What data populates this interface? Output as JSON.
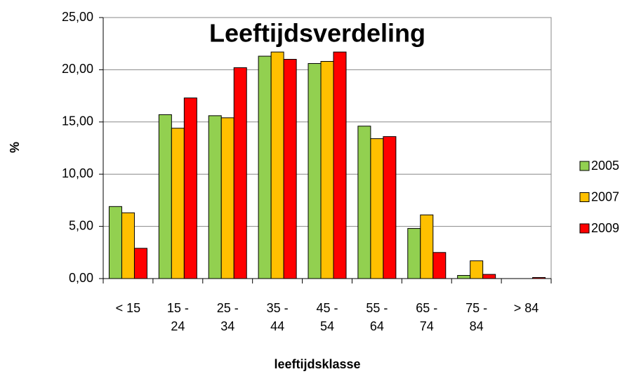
{
  "chart_data": {
    "type": "bar",
    "title": "Leeftijdsverdeling",
    "x_label": "leeftijdsklasse",
    "y_label": "%",
    "categories": [
      "< 15",
      "15 - 24",
      "25 - 34",
      "35 - 44",
      "45 - 54",
      "55 - 64",
      "65 - 74",
      "75 - 84",
      "> 84"
    ],
    "series": [
      {
        "name": "2005",
        "color": "#92d050",
        "values": [
          6.9,
          15.7,
          15.6,
          21.3,
          20.6,
          14.6,
          4.8,
          0.3,
          0.0
        ]
      },
      {
        "name": "2007",
        "color": "#ffc000",
        "values": [
          6.3,
          14.4,
          15.4,
          21.7,
          20.8,
          13.4,
          6.1,
          1.7,
          0.0
        ]
      },
      {
        "name": "2009",
        "color": "#ff0000",
        "values": [
          2.9,
          17.3,
          20.2,
          21.0,
          21.7,
          13.6,
          2.5,
          0.4,
          0.1
        ]
      }
    ],
    "ylim": [
      0,
      25
    ],
    "yticks": [
      {
        "value": 0,
        "label": "0,00"
      },
      {
        "value": 5,
        "label": "5,00"
      },
      {
        "value": 10,
        "label": "10,00"
      },
      {
        "value": 15,
        "label": "15,00"
      },
      {
        "value": 20,
        "label": "20,00"
      },
      {
        "value": 25,
        "label": "25,00"
      }
    ],
    "grid": true,
    "legend": "right"
  }
}
